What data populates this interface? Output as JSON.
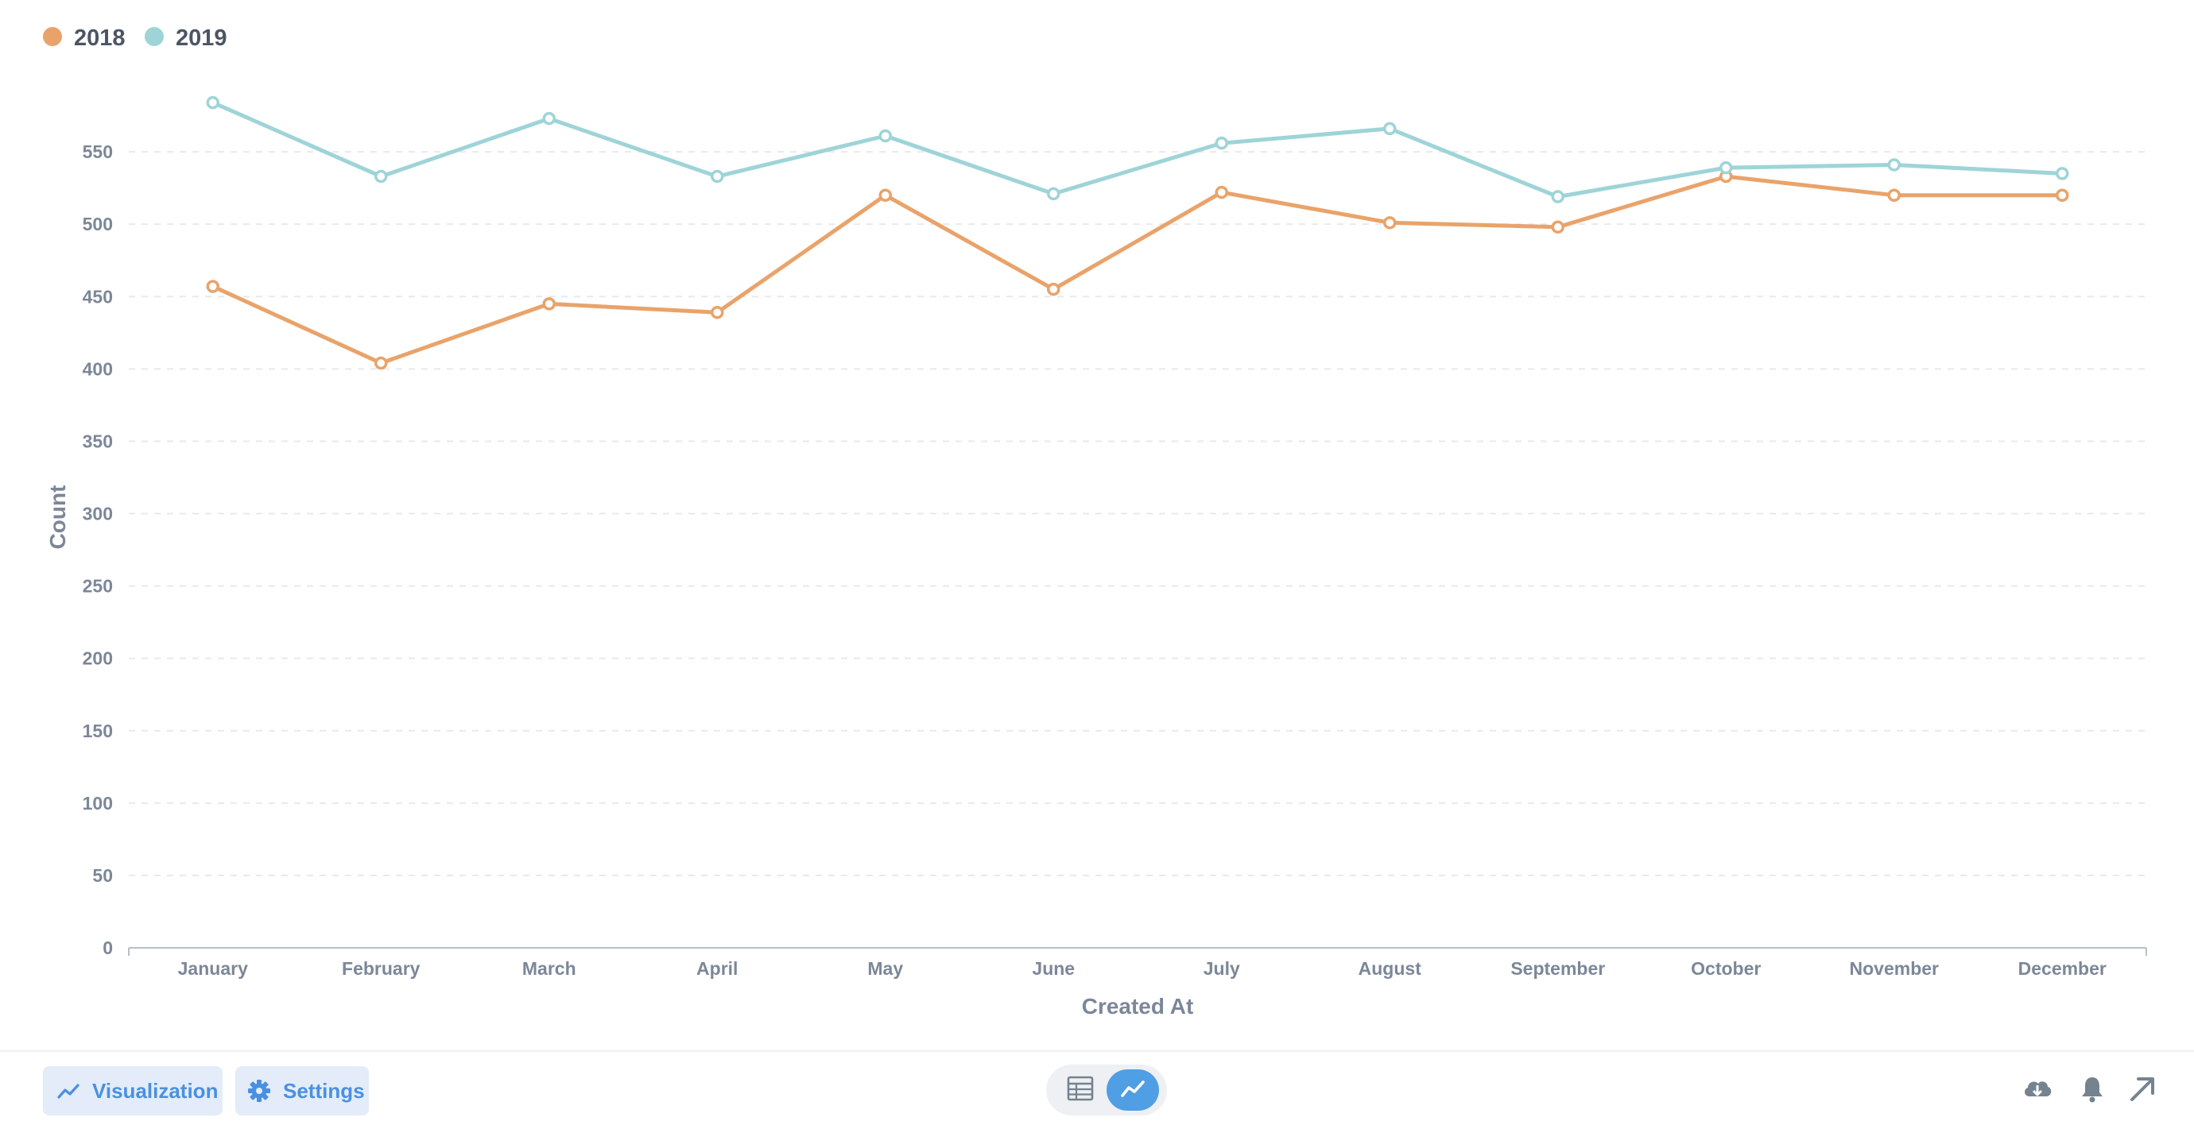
{
  "chart_data": {
    "type": "line",
    "categories": [
      "January",
      "February",
      "March",
      "April",
      "May",
      "June",
      "July",
      "August",
      "September",
      "October",
      "November",
      "December"
    ],
    "series": [
      {
        "name": "2018",
        "color": "#e9a36a",
        "values": [
          457,
          404,
          445,
          439,
          520,
          455,
          522,
          501,
          498,
          533,
          520,
          520
        ]
      },
      {
        "name": "2019",
        "color": "#9ed4d8",
        "values": [
          584,
          533,
          573,
          533,
          561,
          521,
          556,
          566,
          519,
          539,
          541,
          535
        ]
      }
    ],
    "ylabel": "Count",
    "xlabel": "Created At",
    "ylim": [
      0,
      600
    ],
    "yticks": [
      0,
      50,
      100,
      150,
      200,
      250,
      300,
      350,
      400,
      450,
      500,
      550
    ],
    "grid": true,
    "legend": "top-left"
  },
  "footer": {
    "visualization_label": "Visualization",
    "settings_label": "Settings",
    "accent_color": "#509ee3",
    "icons": {
      "visualization": "line-chart-icon",
      "settings": "gear-icon",
      "table_view": "table-icon",
      "chart_view": "line-chart-icon",
      "download": "cloud-download-icon",
      "alert": "bell-icon",
      "expand": "arrow-up-right-icon"
    }
  }
}
